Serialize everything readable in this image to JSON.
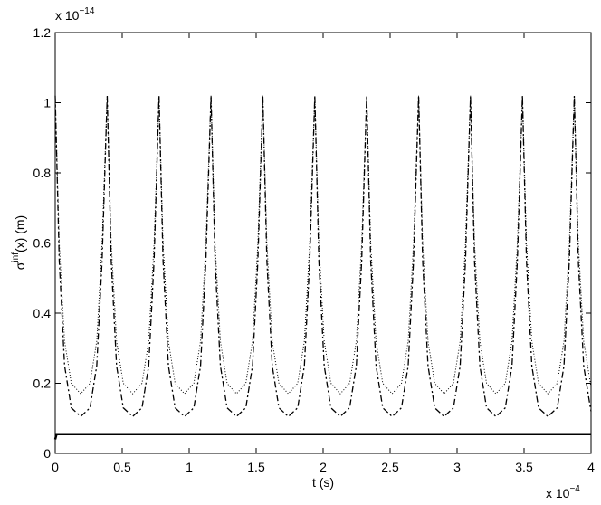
{
  "chart_data": {
    "type": "line",
    "xlabel": "t (s)",
    "ylabel": {
      "base": "σ",
      "sup": "inf",
      "rest": "(x) (m)"
    },
    "x_multiplier": {
      "base": "x 10",
      "exponent": "−4"
    },
    "y_multiplier": {
      "base": "x 10",
      "exponent": "−14"
    },
    "xlim": [
      0,
      4
    ],
    "ylim": [
      0,
      1.2
    ],
    "xticks": [
      0,
      0.5,
      1,
      1.5,
      2,
      2.5,
      3,
      3.5,
      4
    ],
    "yticks": [
      0,
      0.2,
      0.4,
      0.6,
      0.8,
      1,
      1.2
    ],
    "grid": false,
    "x": [
      0,
      0.03,
      0.07,
      0.12,
      0.19,
      0.26,
      0.31,
      0.35,
      0.388,
      0.418,
      0.458,
      0.508,
      0.578,
      0.648,
      0.698,
      0.738,
      0.775,
      0.805,
      0.845,
      0.895,
      0.965,
      1.035,
      1.085,
      1.125,
      1.163,
      1.193,
      1.233,
      1.283,
      1.353,
      1.423,
      1.473,
      1.513,
      1.55,
      1.58,
      1.62,
      1.67,
      1.74,
      1.81,
      1.86,
      1.9,
      1.938,
      1.968,
      2.008,
      2.058,
      2.128,
      2.198,
      2.248,
      2.288,
      2.325,
      2.355,
      2.395,
      2.445,
      2.515,
      2.585,
      2.635,
      2.675,
      2.713,
      2.743,
      2.783,
      2.833,
      2.903,
      2.973,
      3.023,
      3.063,
      3.1,
      3.13,
      3.17,
      3.22,
      3.29,
      3.36,
      3.41,
      3.45,
      3.488,
      3.518,
      3.558,
      3.608,
      3.678,
      3.748,
      3.798,
      3.838,
      3.875,
      3.905,
      3.945,
      3.995,
      4
    ],
    "series": [
      {
        "color": "#000000",
        "linestyle": "-.",
        "values": [
          1.02,
          0.55,
          0.25,
          0.13,
          0.105,
          0.13,
          0.25,
          0.55,
          1.02,
          0.55,
          0.25,
          0.13,
          0.105,
          0.13,
          0.25,
          0.55,
          1.02,
          0.55,
          0.25,
          0.13,
          0.105,
          0.13,
          0.25,
          0.55,
          1.02,
          0.55,
          0.25,
          0.13,
          0.105,
          0.13,
          0.25,
          0.55,
          1.02,
          0.55,
          0.25,
          0.13,
          0.105,
          0.13,
          0.25,
          0.55,
          1.02,
          0.55,
          0.25,
          0.13,
          0.105,
          0.13,
          0.25,
          0.55,
          1.02,
          0.55,
          0.25,
          0.13,
          0.105,
          0.13,
          0.25,
          0.55,
          1.02,
          0.55,
          0.25,
          0.13,
          0.105,
          0.13,
          0.25,
          0.55,
          1.02,
          0.55,
          0.25,
          0.13,
          0.105,
          0.13,
          0.25,
          0.55,
          1.02,
          0.55,
          0.25,
          0.13,
          0.105,
          0.13,
          0.25,
          0.55,
          1.02,
          0.55,
          0.25,
          0.13,
          0.12
        ]
      },
      {
        "color": "#000000",
        "linestyle": ":",
        "values": [
          1.02,
          0.6,
          0.32,
          0.2,
          0.17,
          0.2,
          0.32,
          0.6,
          1.02,
          0.6,
          0.32,
          0.2,
          0.17,
          0.2,
          0.32,
          0.6,
          1.02,
          0.6,
          0.32,
          0.2,
          0.17,
          0.2,
          0.32,
          0.6,
          1.02,
          0.6,
          0.32,
          0.2,
          0.17,
          0.2,
          0.32,
          0.6,
          1.02,
          0.6,
          0.32,
          0.2,
          0.17,
          0.2,
          0.32,
          0.6,
          1.02,
          0.6,
          0.32,
          0.2,
          0.17,
          0.2,
          0.32,
          0.6,
          1.02,
          0.6,
          0.32,
          0.2,
          0.17,
          0.2,
          0.32,
          0.6,
          1.02,
          0.6,
          0.32,
          0.2,
          0.17,
          0.2,
          0.32,
          0.6,
          1.02,
          0.6,
          0.32,
          0.2,
          0.17,
          0.2,
          0.32,
          0.6,
          1.02,
          0.6,
          0.32,
          0.2,
          0.17,
          0.2,
          0.32,
          0.6,
          1.02,
          0.6,
          0.32,
          0.2,
          0.19
        ]
      },
      {
        "color": "#000000",
        "linestyle": "-",
        "x": [
          0,
          0.01,
          4
        ],
        "values": [
          0.04,
          0.055,
          0.055
        ]
      }
    ]
  }
}
